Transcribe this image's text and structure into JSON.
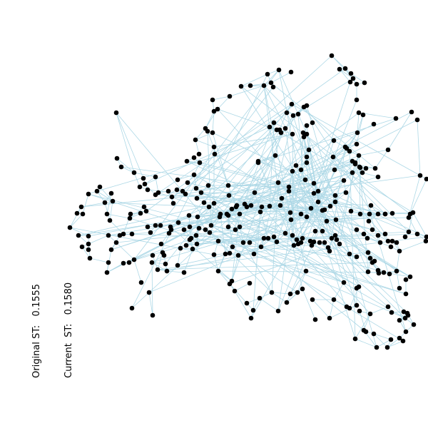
{
  "stats": {
    "original": "Original ST:   0.1555",
    "current": "Current  ST:   0.1580"
  },
  "colors": {
    "edge": "#add8e6",
    "node": "#000000",
    "background": "#ffffff"
  }
}
